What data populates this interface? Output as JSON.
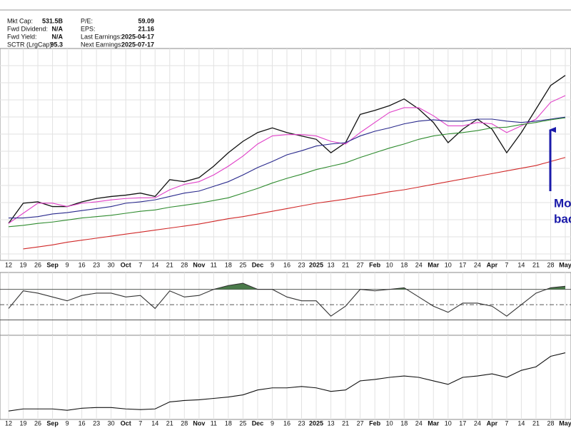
{
  "info": [
    {
      "label": "Mkt Cap:",
      "value": "531.5B"
    },
    {
      "label": "Fwd Dividend:",
      "value": "N/A"
    },
    {
      "label": "Fwd Yield:",
      "value": "N/A"
    },
    {
      "label": "SCTR (LrgCap):",
      "value": "95.3"
    },
    {
      "label": "P/E:",
      "value": "59.09"
    },
    {
      "label": "EPS:",
      "value": "21.16"
    },
    {
      "label": "Last Earnings:",
      "value": "2025-04-17"
    },
    {
      "label": "Next Earnings:",
      "value": "2025-07-17"
    }
  ],
  "chart_data": [
    {
      "type": "line",
      "categories": [
        "12",
        "19",
        "26",
        "Sep",
        "9",
        "16",
        "23",
        "30",
        "Oct",
        "7",
        "14",
        "21",
        "28",
        "Nov",
        "11",
        "18",
        "25",
        "Dec",
        "9",
        "16",
        "23",
        "2025",
        "13",
        "21",
        "27",
        "Feb",
        "10",
        "18",
        "24",
        "Mar",
        "10",
        "17",
        "24",
        "Apr",
        "7",
        "14",
        "21",
        "28",
        "May"
      ],
      "ylim": [
        530,
        1160
      ],
      "grid": true,
      "annotation": [
        "Mo",
        "bac"
      ],
      "series": [
        {
          "color": "#111111",
          "values": [
            640,
            700,
            704,
            690,
            690,
            704,
            714,
            720,
            724,
            730,
            720,
            770,
            764,
            776,
            810,
            850,
            884,
            910,
            924,
            910,
            900,
            890,
            850,
            880,
            964,
            976,
            990,
            1010,
            980,
            940,
            880,
            920,
            950,
            920,
            850,
            910,
            980,
            1050,
            1080
          ]
        },
        {
          "color": "#e040c8",
          "values": [
            640,
            670,
            700,
            700,
            690,
            700,
            704,
            710,
            714,
            716,
            716,
            740,
            756,
            764,
            784,
            810,
            840,
            876,
            900,
            904,
            904,
            900,
            884,
            876,
            910,
            940,
            970,
            984,
            984,
            960,
            930,
            930,
            940,
            936,
            910,
            930,
            950,
            1000,
            1020
          ]
        },
        {
          "color": "#28288c",
          "values": [
            656,
            656,
            660,
            668,
            672,
            678,
            684,
            690,
            700,
            704,
            710,
            720,
            730,
            736,
            750,
            764,
            784,
            806,
            824,
            844,
            856,
            870,
            876,
            880,
            900,
            914,
            924,
            936,
            944,
            948,
            944,
            944,
            950,
            950,
            944,
            940,
            944,
            950,
            956
          ]
        },
        {
          "color": "#2e8b2e",
          "values": [
            630,
            634,
            640,
            644,
            650,
            656,
            660,
            664,
            670,
            676,
            680,
            688,
            694,
            700,
            708,
            716,
            730,
            744,
            760,
            774,
            786,
            800,
            810,
            820,
            836,
            850,
            864,
            876,
            890,
            900,
            906,
            910,
            916,
            924,
            926,
            934,
            940,
            948,
            954
          ]
        },
        {
          "color": "#d02828",
          "values": [
            null,
            564,
            570,
            576,
            584,
            590,
            596,
            602,
            608,
            614,
            620,
            626,
            632,
            638,
            646,
            654,
            660,
            668,
            676,
            684,
            692,
            700,
            706,
            712,
            720,
            726,
            734,
            740,
            748,
            756,
            764,
            772,
            780,
            788,
            796,
            804,
            812,
            824,
            836
          ]
        }
      ]
    },
    {
      "type": "line",
      "ylim": [
        10,
        92
      ],
      "yticks": [
        30,
        50,
        70
      ],
      "fill_above": 70,
      "fill_color": "#4a7a4a",
      "series": [
        {
          "color": "#333333",
          "values": [
            45,
            68,
            65,
            60,
            55,
            62,
            65,
            65,
            60,
            62,
            45,
            68,
            60,
            62,
            70,
            75,
            78,
            70,
            70,
            60,
            55,
            55,
            35,
            48,
            70,
            68,
            70,
            72,
            60,
            48,
            40,
            52,
            52,
            48,
            35,
            50,
            65,
            72,
            74
          ]
        }
      ]
    },
    {
      "type": "line",
      "ylim": [
        0.1,
        1.3
      ],
      "series": [
        {
          "color": "#111111",
          "values": [
            0.22,
            0.25,
            0.25,
            0.25,
            0.23,
            0.26,
            0.27,
            0.27,
            0.25,
            0.24,
            0.25,
            0.35,
            0.37,
            0.38,
            0.4,
            0.42,
            0.45,
            0.52,
            0.55,
            0.55,
            0.57,
            0.55,
            0.5,
            0.52,
            0.65,
            0.67,
            0.7,
            0.72,
            0.7,
            0.65,
            0.6,
            0.7,
            0.72,
            0.75,
            0.7,
            0.8,
            0.85,
            1.0,
            1.05
          ]
        }
      ]
    }
  ]
}
